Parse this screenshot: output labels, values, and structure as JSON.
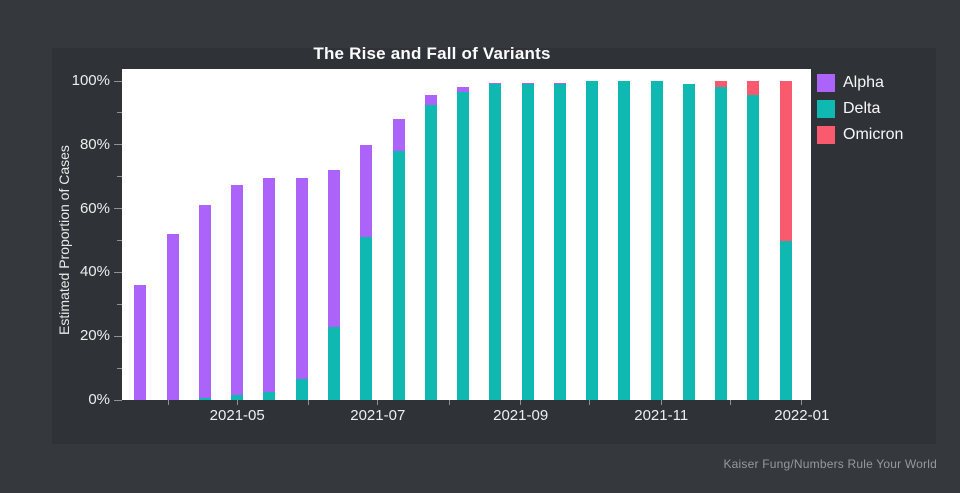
{
  "page": {
    "background": "#35383c",
    "figure_background": "#2f3236",
    "plot_background": "#ffffff"
  },
  "title": "The Rise and Fall of Variants",
  "y_axis_title": "Estimated Proportion of Cases",
  "credit": "Kaiser Fung/Numbers Rule Your World",
  "legend": [
    {
      "label": "Alpha",
      "color": "#ab63fa"
    },
    {
      "label": "Delta",
      "color": "#0fb9b1"
    },
    {
      "label": "Omicron",
      "color": "#fa5a6e"
    }
  ],
  "chart_data": {
    "type": "bar",
    "stacked": true,
    "title": "The Rise and Fall of Variants",
    "xlabel": "",
    "ylabel": "Estimated Proportion of Cases",
    "ylim": [
      0,
      100
    ],
    "grid": false,
    "legend_position": "right",
    "bar_interval": "biweekly",
    "x": [
      "2021-03-20",
      "2021-04-03",
      "2021-04-17",
      "2021-05-01",
      "2021-05-15",
      "2021-05-29",
      "2021-06-12",
      "2021-06-26",
      "2021-07-10",
      "2021-07-24",
      "2021-08-07",
      "2021-08-21",
      "2021-09-04",
      "2021-09-18",
      "2021-10-02",
      "2021-10-16",
      "2021-10-30",
      "2021-11-13",
      "2021-11-27",
      "2021-12-11",
      "2021-12-25"
    ],
    "series": [
      {
        "name": "Alpha",
        "color": "#ab63fa",
        "values": [
          36,
          52,
          60.5,
          66,
          67,
          63,
          49,
          29,
          10,
          3,
          1.5,
          0.5,
          0.5,
          0.5,
          0,
          0,
          0,
          0,
          0,
          0,
          0
        ]
      },
      {
        "name": "Delta",
        "color": "#0fb9b1",
        "values": [
          0,
          0,
          0.5,
          1.5,
          2.5,
          6.5,
          23,
          51,
          78,
          92.5,
          96.5,
          99,
          99,
          99,
          100,
          100,
          100,
          99,
          98,
          95.5,
          50
        ]
      },
      {
        "name": "Omicron",
        "color": "#fa5a6e",
        "values": [
          0,
          0,
          0,
          0,
          0,
          0,
          0,
          0,
          0,
          0,
          0,
          0,
          0,
          0,
          0,
          0,
          0,
          0,
          2,
          4.5,
          50
        ]
      }
    ],
    "stack_order_bottom_to_top": [
      "Delta",
      "Alpha",
      "Omicron"
    ],
    "x_domain": [
      "2021-03-12",
      "2022-01-05"
    ],
    "x_ticks": [
      {
        "date": "2021-04-01",
        "label": ""
      },
      {
        "date": "2021-05-01",
        "label": "2021-05"
      },
      {
        "date": "2021-06-01",
        "label": ""
      },
      {
        "date": "2021-07-01",
        "label": "2021-07"
      },
      {
        "date": "2021-08-01",
        "label": ""
      },
      {
        "date": "2021-09-01",
        "label": "2021-09"
      },
      {
        "date": "2021-10-01",
        "label": ""
      },
      {
        "date": "2021-11-01",
        "label": "2021-11"
      },
      {
        "date": "2021-12-01",
        "label": ""
      },
      {
        "date": "2022-01-01",
        "label": "2022-01"
      }
    ],
    "y_ticks_major": [
      0,
      20,
      40,
      60,
      80,
      100
    ],
    "y_ticks_minor": [
      10,
      30,
      50,
      70,
      90
    ],
    "y_tick_label_format": "{v}%"
  }
}
